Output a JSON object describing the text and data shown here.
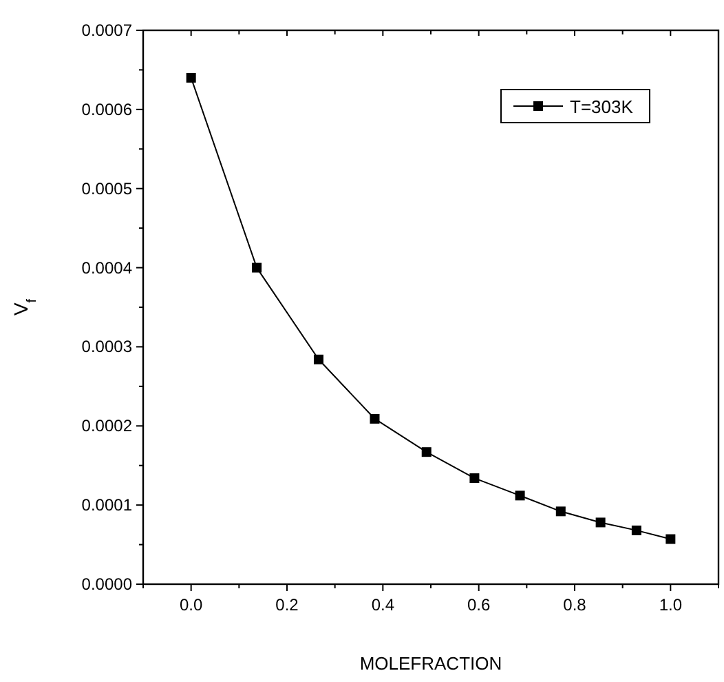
{
  "chart_data": {
    "type": "line",
    "xlabel": "MOLEFRACTION",
    "ylabel": "V$_{f}$",
    "x": [
      0,
      0.137,
      0.266,
      0.383,
      0.491,
      0.591,
      0.686,
      0.771,
      0.854,
      0.929,
      1.0
    ],
    "series": [
      {
        "name": "T=303K",
        "color": "#000000",
        "values": [
          0.00064,
          0.0004,
          0.000284,
          0.000209,
          0.000167,
          0.000134,
          0.000112,
          9.2e-05,
          7.8e-05,
          6.8e-05,
          5.7e-05
        ]
      }
    ],
    "xlim": [
      -0.1,
      1.1
    ],
    "xticks": [
      {
        "value": 0,
        "label": "0.0"
      },
      {
        "value": 0.2,
        "label": "0.2"
      },
      {
        "value": 0.4,
        "label": "0.4"
      },
      {
        "value": 0.6,
        "label": "0.6"
      },
      {
        "value": 0.8,
        "label": "0.8"
      },
      {
        "value": 1,
        "label": "1.0"
      }
    ],
    "ylim": [
      0,
      0.0007
    ],
    "yticks": [
      {
        "value": 0,
        "label": "0.0000"
      },
      {
        "value": 0.0001,
        "label": "0.0001"
      },
      {
        "value": 0.0002,
        "label": "0.0002"
      },
      {
        "value": 0.0003,
        "label": "0.0003"
      },
      {
        "value": 0.0004,
        "label": "0.0004"
      },
      {
        "value": 0.0005,
        "label": "0.0005"
      },
      {
        "value": 0.0006,
        "label": "0.0006"
      },
      {
        "value": 0.0007,
        "label": "0.0007"
      }
    ],
    "grid": false,
    "legend": "top right",
    "marker": "square",
    "line_style": "solid"
  }
}
